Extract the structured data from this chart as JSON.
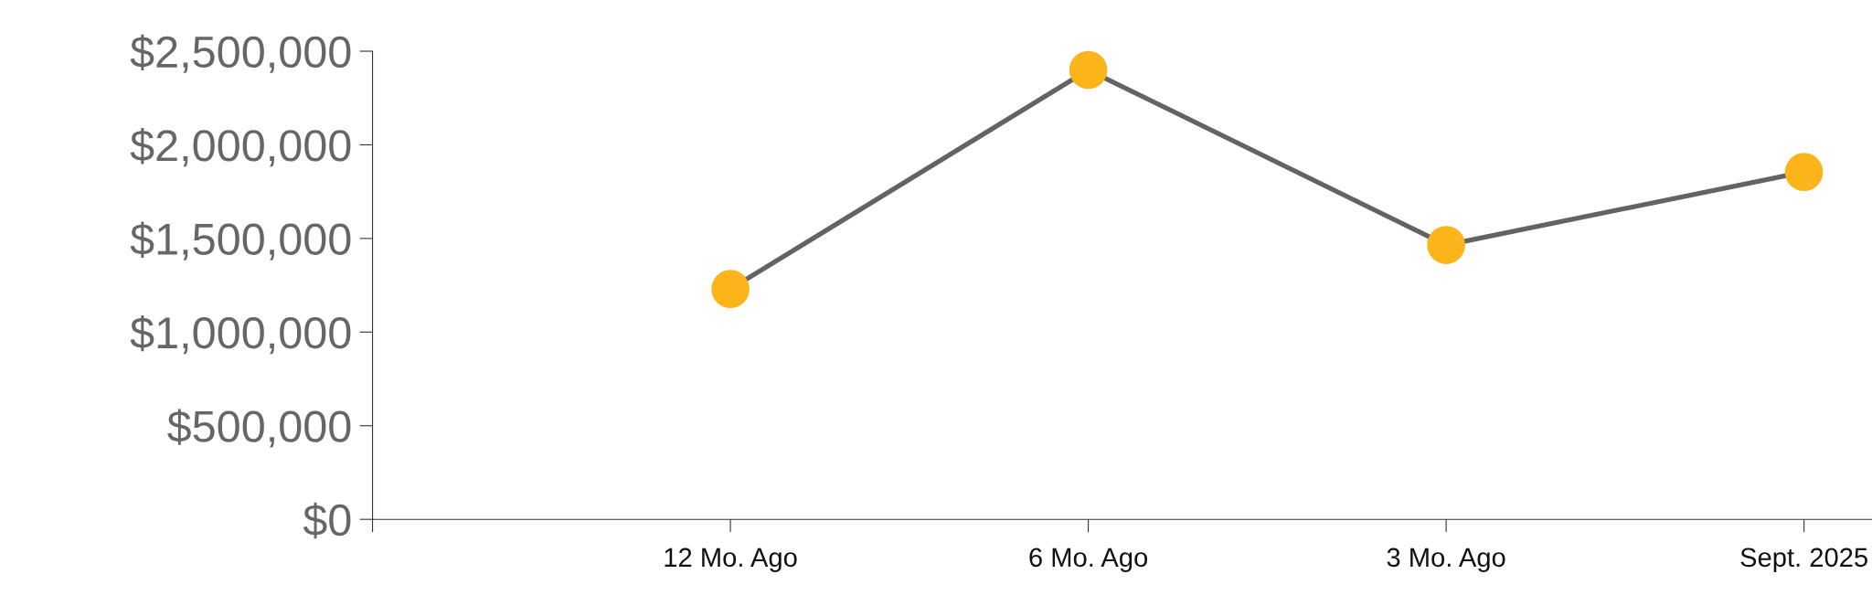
{
  "chart_data": {
    "type": "line",
    "categories": [
      null,
      "12 Mo. Ago",
      "6 Mo. Ago",
      "3 Mo. Ago",
      "Sept. 2025"
    ],
    "series": [
      {
        "color": "#636363",
        "colors": [
          null,
          "#fbb41a",
          "#fbb41a",
          "#fbb41a",
          "#fbb41a"
        ],
        "values": [
          null,
          1230000,
          2400000,
          1465000,
          1855000
        ]
      }
    ],
    "ylim": [
      0,
      2500000
    ],
    "yticks": [
      {
        "value": 0,
        "label": "$0"
      },
      {
        "value": 500000,
        "label": "$500,000"
      },
      {
        "value": 1000000,
        "label": "$1,000,000"
      },
      {
        "value": 1500000,
        "label": "$1,500,000"
      },
      {
        "value": 2000000,
        "label": "$2,000,000"
      },
      {
        "value": 2500000,
        "label": "$2,500,000"
      }
    ],
    "marker": "circle",
    "line_style": "solid",
    "grid": false,
    "legend": false
  }
}
